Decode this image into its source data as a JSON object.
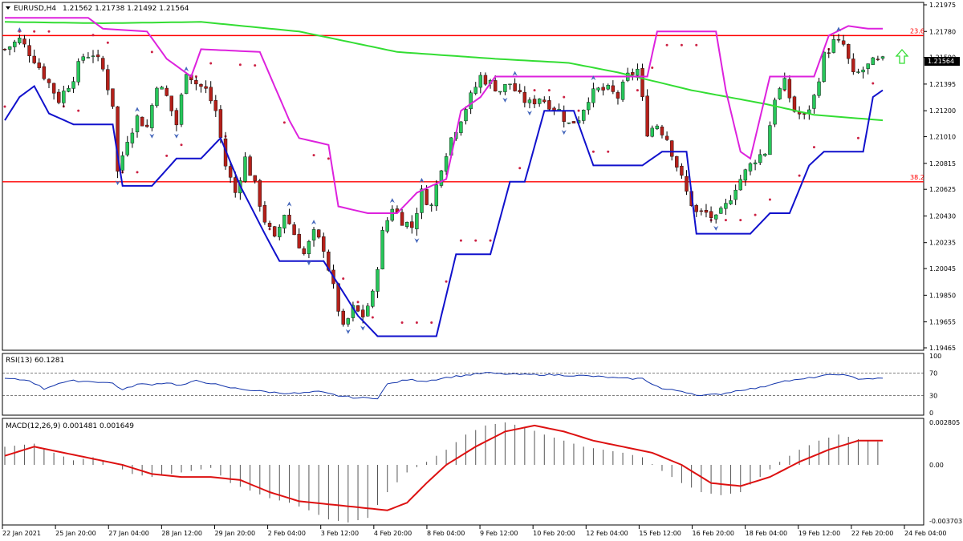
{
  "header": {
    "symbol": "EURUSD,H4",
    "ohlc": "1.21562 1.21738 1.21492 1.21564"
  },
  "current_price_label": "1.21564",
  "colors": {
    "bull": "#27c65a",
    "bear": "#b4201a",
    "ma_slow": "#33dd33",
    "band_upper": "#dd22dd",
    "band_lower": "#1111cc",
    "sar": "#cc2244",
    "fib": "#ff0000",
    "macd_signal": "#dd1111",
    "arrow_up": "#33dd33"
  },
  "chart_data": [
    {
      "type": "candlestick",
      "name": "main",
      "ylim": [
        1.19465,
        1.21975
      ],
      "y_ticks": [
        "1.21975",
        "1.21780",
        "1.21590",
        "1.21395",
        "1.21200",
        "1.21010",
        "1.20815",
        "1.20625",
        "1.20430",
        "1.20235",
        "1.20045",
        "1.19850",
        "1.19655",
        "1.19465"
      ],
      "x_tick_labels": [
        "22 Jan 2021",
        "25 Jan 20:00",
        "27 Jan 04:00",
        "28 Jan 12:00",
        "29 Jan 20:00",
        "2 Feb 04:00",
        "3 Feb 12:00",
        "4 Feb 20:00",
        "8 Feb 04:00",
        "9 Feb 12:00",
        "10 Feb 20:00",
        "12 Feb 04:00",
        "15 Feb 12:00",
        "16 Feb 20:00",
        "18 Feb 04:00",
        "19 Feb 12:00",
        "22 Feb 20:00",
        "24 Feb 04:00"
      ],
      "fib_levels": [
        {
          "label": "23.6",
          "price": 1.2175
        },
        {
          "label": "38.2",
          "price": 1.2068
        }
      ],
      "close_path": [
        [
          0,
          1.2165
        ],
        [
          3,
          1.2172
        ],
        [
          6,
          1.2158
        ],
        [
          9,
          1.214
        ],
        [
          11,
          1.2128
        ],
        [
          14,
          1.2145
        ],
        [
          16,
          1.216
        ],
        [
          18,
          1.2162
        ],
        [
          20,
          1.215
        ],
        [
          22,
          1.2125
        ],
        [
          23,
          1.2075
        ],
        [
          25,
          1.21
        ],
        [
          27,
          1.2115
        ],
        [
          29,
          1.2108
        ],
        [
          31,
          1.214
        ],
        [
          33,
          1.213
        ],
        [
          35,
          1.211
        ],
        [
          37,
          1.215
        ],
        [
          39,
          1.214
        ],
        [
          41,
          1.2135
        ],
        [
          43,
          1.212
        ],
        [
          45,
          1.208
        ],
        [
          47,
          1.206
        ],
        [
          49,
          1.2085
        ],
        [
          51,
          1.2065
        ],
        [
          53,
          1.204
        ],
        [
          55,
          1.2025
        ],
        [
          57,
          1.2045
        ],
        [
          59,
          1.203
        ],
        [
          61,
          1.2015
        ],
        [
          63,
          1.203
        ],
        [
          65,
          1.202
        ],
        [
          67,
          1.199
        ],
        [
          69,
          1.196
        ],
        [
          71,
          1.1975
        ],
        [
          73,
          1.197
        ],
        [
          75,
          1.1985
        ],
        [
          77,
          1.203
        ],
        [
          79,
          1.205
        ],
        [
          81,
          1.204
        ],
        [
          83,
          1.2035
        ],
        [
          85,
          1.206
        ],
        [
          87,
          1.205
        ],
        [
          89,
          1.208
        ],
        [
          91,
          1.21
        ],
        [
          93,
          1.2115
        ],
        [
          95,
          1.213
        ],
        [
          97,
          1.2145
        ],
        [
          99,
          1.214
        ],
        [
          101,
          1.2135
        ],
        [
          103,
          1.214
        ],
        [
          105,
          1.213
        ],
        [
          107,
          1.2125
        ],
        [
          109,
          1.213
        ],
        [
          111,
          1.2125
        ],
        [
          113,
          1.212
        ],
        [
          115,
          1.211
        ],
        [
          117,
          1.2115
        ],
        [
          119,
          1.213
        ],
        [
          121,
          1.2135
        ],
        [
          123,
          1.2135
        ],
        [
          125,
          1.213
        ],
        [
          127,
          1.2145
        ],
        [
          129,
          1.215
        ],
        [
          131,
          1.2105
        ],
        [
          133,
          1.211
        ],
        [
          135,
          1.21
        ],
        [
          137,
          1.208
        ],
        [
          139,
          1.206
        ],
        [
          141,
          1.2045
        ],
        [
          143,
          1.2045
        ],
        [
          145,
          1.204
        ],
        [
          147,
          1.205
        ],
        [
          149,
          1.2065
        ],
        [
          151,
          1.2075
        ],
        [
          153,
          1.2085
        ],
        [
          155,
          1.209
        ],
        [
          157,
          1.213
        ],
        [
          159,
          1.214
        ],
        [
          161,
          1.212
        ],
        [
          163,
          1.2115
        ],
        [
          165,
          1.213
        ],
        [
          167,
          1.216
        ],
        [
          169,
          1.217
        ],
        [
          171,
          1.2168
        ],
        [
          173,
          1.2145
        ],
        [
          175,
          1.215
        ],
        [
          177,
          1.2155
        ],
        [
          179,
          1.2156
        ]
      ],
      "ma_slow_path": [
        [
          0,
          1.2185
        ],
        [
          20,
          1.2184
        ],
        [
          40,
          1.2185
        ],
        [
          60,
          1.2178
        ],
        [
          80,
          1.2163
        ],
        [
          100,
          1.2158
        ],
        [
          115,
          1.2155
        ],
        [
          125,
          1.2148
        ],
        [
          140,
          1.2135
        ],
        [
          155,
          1.2125
        ],
        [
          165,
          1.2117
        ],
        [
          179,
          1.2113
        ]
      ],
      "band_upper_path": [
        [
          0,
          1.2188
        ],
        [
          17,
          1.2188
        ],
        [
          20,
          1.218
        ],
        [
          29,
          1.2178
        ],
        [
          33,
          1.2158
        ],
        [
          38,
          1.2145
        ],
        [
          40,
          1.2165
        ],
        [
          52,
          1.2163
        ],
        [
          58,
          1.2113
        ],
        [
          60,
          1.21
        ],
        [
          66,
          1.2095
        ],
        [
          68,
          1.205
        ],
        [
          74,
          1.2045
        ],
        [
          80,
          1.2045
        ],
        [
          84,
          1.206
        ],
        [
          90,
          1.207
        ],
        [
          93,
          1.212
        ],
        [
          97,
          1.213
        ],
        [
          100,
          1.2145
        ],
        [
          108,
          1.2145
        ],
        [
          122,
          1.2145
        ],
        [
          131,
          1.2145
        ],
        [
          133,
          1.2178
        ],
        [
          145,
          1.2178
        ],
        [
          147,
          1.2135
        ],
        [
          150,
          1.209
        ],
        [
          152,
          1.2085
        ],
        [
          156,
          1.2145
        ],
        [
          165,
          1.2145
        ],
        [
          168,
          1.2175
        ],
        [
          172,
          1.2182
        ],
        [
          176,
          1.218
        ],
        [
          179,
          1.218
        ]
      ],
      "band_lower_path": [
        [
          0,
          1.2113
        ],
        [
          3,
          1.213
        ],
        [
          6,
          1.2138
        ],
        [
          9,
          1.2118
        ],
        [
          14,
          1.211
        ],
        [
          22,
          1.211
        ],
        [
          24,
          1.2065
        ],
        [
          30,
          1.2065
        ],
        [
          35,
          1.2085
        ],
        [
          40,
          1.2085
        ],
        [
          44,
          1.21
        ],
        [
          48,
          1.2065
        ],
        [
          53,
          1.203
        ],
        [
          56,
          1.201
        ],
        [
          65,
          1.201
        ],
        [
          72,
          1.197
        ],
        [
          76,
          1.1955
        ],
        [
          88,
          1.1955
        ],
        [
          92,
          1.2015
        ],
        [
          95,
          1.2015
        ],
        [
          99,
          1.2015
        ],
        [
          103,
          1.2068
        ],
        [
          106,
          1.2068
        ],
        [
          110,
          1.212
        ],
        [
          116,
          1.212
        ],
        [
          120,
          1.208
        ],
        [
          130,
          1.208
        ],
        [
          134,
          1.209
        ],
        [
          139,
          1.209
        ],
        [
          141,
          1.203
        ],
        [
          144,
          1.203
        ],
        [
          152,
          1.203
        ],
        [
          156,
          1.2045
        ],
        [
          160,
          1.2045
        ],
        [
          164,
          1.208
        ],
        [
          167,
          1.209
        ],
        [
          175,
          1.209
        ],
        [
          177,
          1.213
        ],
        [
          179,
          1.2135
        ]
      ]
    },
    {
      "type": "line",
      "name": "RSI(13)",
      "label": "RSI(13) 60.1281",
      "ylim": [
        0,
        100
      ],
      "y_ticks": [
        "100",
        "70",
        "30",
        "0"
      ],
      "levels": [
        70,
        30
      ],
      "path": [
        [
          0,
          60
        ],
        [
          5,
          57
        ],
        [
          8,
          42
        ],
        [
          11,
          52
        ],
        [
          14,
          56
        ],
        [
          18,
          55
        ],
        [
          22,
          52
        ],
        [
          24,
          40
        ],
        [
          27,
          50
        ],
        [
          30,
          50
        ],
        [
          33,
          53
        ],
        [
          36,
          48
        ],
        [
          39,
          56
        ],
        [
          42,
          52
        ],
        [
          45,
          45
        ],
        [
          48,
          42
        ],
        [
          52,
          38
        ],
        [
          56,
          35
        ],
        [
          60,
          34
        ],
        [
          64,
          37
        ],
        [
          68,
          30
        ],
        [
          72,
          26
        ],
        [
          76,
          26
        ],
        [
          78,
          50
        ],
        [
          82,
          58
        ],
        [
          86,
          56
        ],
        [
          90,
          62
        ],
        [
          94,
          66
        ],
        [
          98,
          70
        ],
        [
          102,
          68
        ],
        [
          106,
          67
        ],
        [
          110,
          67
        ],
        [
          114,
          66
        ],
        [
          118,
          65
        ],
        [
          122,
          63
        ],
        [
          126,
          60
        ],
        [
          130,
          60
        ],
        [
          134,
          42
        ],
        [
          138,
          38
        ],
        [
          142,
          30
        ],
        [
          146,
          33
        ],
        [
          150,
          40
        ],
        [
          154,
          44
        ],
        [
          158,
          55
        ],
        [
          162,
          58
        ],
        [
          166,
          64
        ],
        [
          170,
          68
        ],
        [
          174,
          60
        ],
        [
          178,
          60
        ]
      ]
    },
    {
      "type": "histogram+line",
      "name": "MACD(12,26,9)",
      "label": "MACD(12,26,9) 0.001481 0.001649",
      "ylim": [
        -0.003703,
        0.002805
      ],
      "y_ticks": [
        "0.002805",
        "0.00",
        "-0.003703"
      ],
      "histogram_path": [
        [
          0,
          0.0012
        ],
        [
          6,
          0.0014
        ],
        [
          10,
          0.0008
        ],
        [
          14,
          0.0003
        ],
        [
          18,
          0.0005
        ],
        [
          22,
          0.0
        ],
        [
          26,
          -0.0006
        ],
        [
          30,
          -0.0008
        ],
        [
          34,
          -0.0006
        ],
        [
          38,
          -0.0004
        ],
        [
          42,
          -0.0002
        ],
        [
          46,
          -0.0012
        ],
        [
          50,
          -0.0017
        ],
        [
          54,
          -0.0022
        ],
        [
          58,
          -0.0025
        ],
        [
          62,
          -0.003
        ],
        [
          66,
          -0.0036
        ],
        [
          70,
          -0.0038
        ],
        [
          74,
          -0.0035
        ],
        [
          78,
          -0.0018
        ],
        [
          82,
          -0.0005
        ],
        [
          86,
          0.0002
        ],
        [
          90,
          0.001
        ],
        [
          94,
          0.002
        ],
        [
          98,
          0.0026
        ],
        [
          102,
          0.0028
        ],
        [
          106,
          0.0025
        ],
        [
          110,
          0.002
        ],
        [
          114,
          0.0016
        ],
        [
          118,
          0.0012
        ],
        [
          122,
          0.001
        ],
        [
          126,
          0.0008
        ],
        [
          130,
          0.0005
        ],
        [
          134,
          -0.0004
        ],
        [
          138,
          -0.0012
        ],
        [
          142,
          -0.0018
        ],
        [
          146,
          -0.002
        ],
        [
          150,
          -0.0018
        ],
        [
          154,
          -0.0008
        ],
        [
          158,
          0.0002
        ],
        [
          162,
          0.001
        ],
        [
          166,
          0.0016
        ],
        [
          170,
          0.002
        ],
        [
          174,
          0.0017
        ],
        [
          179,
          0.0015
        ]
      ],
      "signal_path": [
        [
          0,
          0.0006
        ],
        [
          6,
          0.0012
        ],
        [
          12,
          0.0008
        ],
        [
          18,
          0.0004
        ],
        [
          24,
          0.0
        ],
        [
          30,
          -0.0006
        ],
        [
          36,
          -0.0008
        ],
        [
          42,
          -0.0008
        ],
        [
          48,
          -0.001
        ],
        [
          54,
          -0.0018
        ],
        [
          60,
          -0.0024
        ],
        [
          66,
          -0.0026
        ],
        [
          72,
          -0.0028
        ],
        [
          78,
          -0.003
        ],
        [
          82,
          -0.0025
        ],
        [
          86,
          -0.0012
        ],
        [
          90,
          0.0
        ],
        [
          96,
          0.0012
        ],
        [
          102,
          0.0022
        ],
        [
          108,
          0.0026
        ],
        [
          114,
          0.0022
        ],
        [
          120,
          0.0016
        ],
        [
          126,
          0.0012
        ],
        [
          132,
          0.0008
        ],
        [
          138,
          0.0
        ],
        [
          144,
          -0.0012
        ],
        [
          150,
          -0.0014
        ],
        [
          156,
          -0.0008
        ],
        [
          162,
          0.0002
        ],
        [
          168,
          0.001
        ],
        [
          174,
          0.0016
        ],
        [
          179,
          0.0016
        ]
      ]
    }
  ]
}
